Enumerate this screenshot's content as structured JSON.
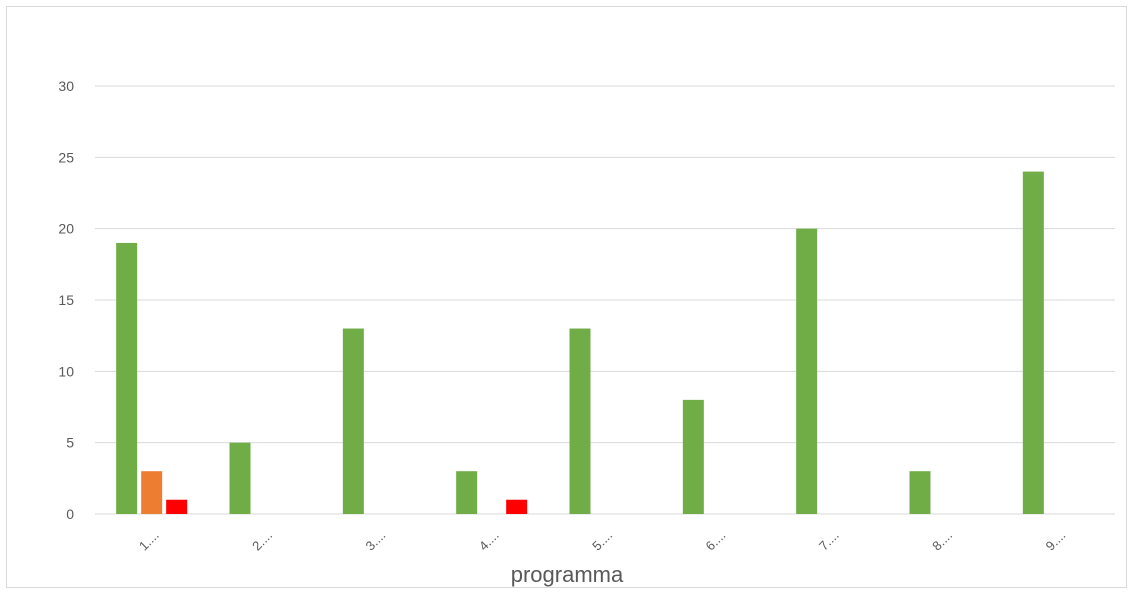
{
  "chart_data": {
    "type": "bar",
    "categories": [
      "1....",
      "2....",
      "3....",
      "4....",
      "5....",
      "6....",
      "7....",
      "8....",
      "9...."
    ],
    "series": [
      {
        "values": [
          19,
          5,
          13,
          3,
          13,
          8,
          20,
          3,
          24
        ],
        "color": "#70ad47"
      },
      {
        "values": [
          3,
          0,
          0,
          0,
          0,
          0,
          0,
          0,
          0
        ],
        "color": "#ed7d31"
      },
      {
        "values": [
          1,
          0,
          0,
          1,
          0,
          0,
          0,
          0,
          0
        ],
        "color": "#ff0000"
      }
    ],
    "xlabel": "programma",
    "ylabel": "",
    "ylim": [
      0,
      30
    ],
    "yticks": [
      0,
      5,
      10,
      15,
      20,
      25,
      30
    ],
    "grid": true,
    "legend": "none"
  }
}
